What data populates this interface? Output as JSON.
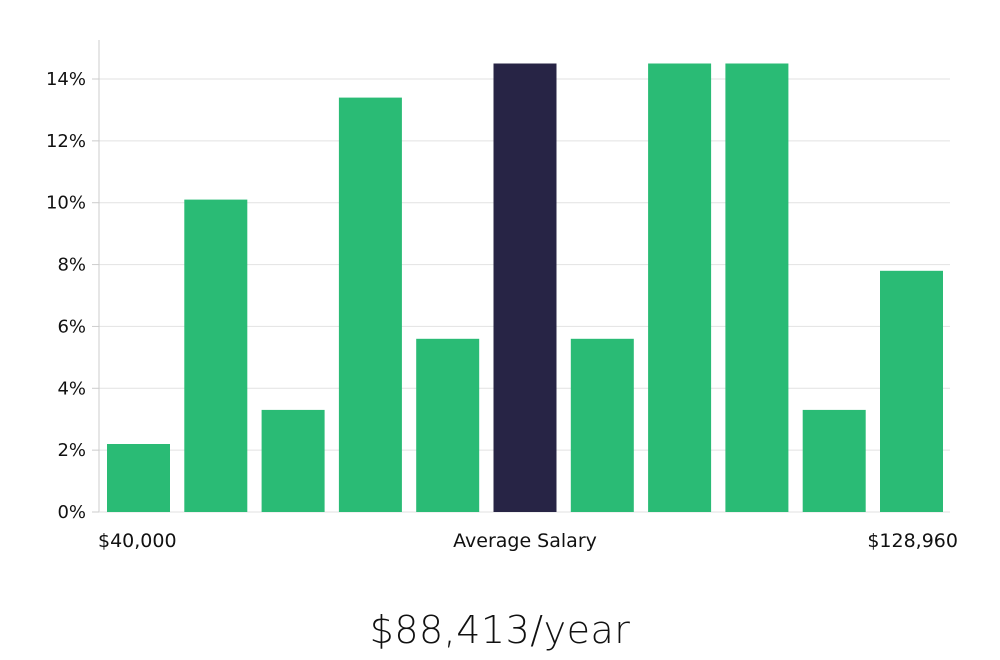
{
  "chart_data": {
    "type": "bar",
    "categories": [
      "1",
      "2",
      "3",
      "4",
      "5",
      "6",
      "7",
      "8",
      "9",
      "10",
      "11"
    ],
    "values": [
      2.2,
      10.1,
      3.3,
      13.4,
      5.6,
      14.5,
      5.6,
      14.5,
      14.5,
      3.3,
      7.8
    ],
    "highlight_index": 5,
    "ylim": [
      0,
      14
    ],
    "yticks": [
      "0%",
      "2%",
      "4%",
      "6%",
      "8%",
      "10%",
      "12%",
      "14%"
    ],
    "x_min_label": "$40,000",
    "x_center_label": "Average Salary",
    "x_max_label": "$128,960",
    "grid": true
  },
  "colors": {
    "bar": "#2abb75",
    "highlight": "#272445",
    "grid": "#e2e2e2",
    "axis": "#cccccc"
  },
  "headline": "$88,413/year"
}
